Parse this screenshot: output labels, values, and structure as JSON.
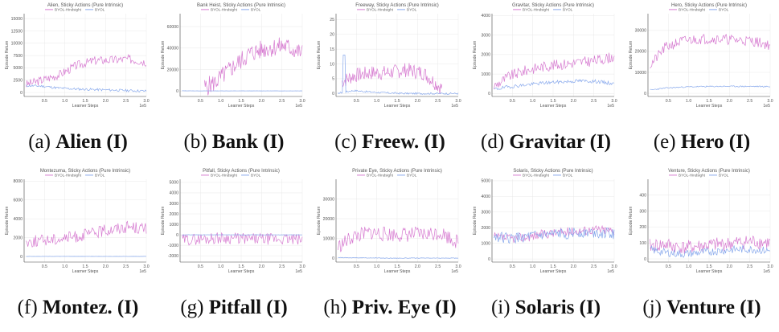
{
  "colors": {
    "hindsight": "#d67ad0",
    "byol": "#87a8ec",
    "grid": "#e9e9e9",
    "axis": "#444444"
  },
  "chart_data": [
    {
      "type": "line",
      "title": "Alien, Sticky Actions (Pure Intrinsic)",
      "xlabel": "Learner Steps",
      "ylabel": "Episode Return",
      "exponent": "1e5",
      "xlim": [
        0,
        3.0
      ],
      "ylim": [
        -800,
        16000
      ],
      "xticks": [
        "0.5",
        "1.0",
        "1.5",
        "2.0",
        "2.5",
        "3.0"
      ],
      "yticks": [
        0,
        2500,
        5000,
        7500,
        10000,
        12500,
        15000
      ],
      "caption_letter": "(a)",
      "caption_name": "Alien (I)",
      "series": [
        {
          "name": "BYOL-Hindsight",
          "base": [
            1500,
            2500,
            3600,
            5500,
            6500,
            6600,
            6800,
            6200
          ],
          "noise": 900,
          "seed": 3
        },
        {
          "name": "BYOL",
          "base": [
            1400,
            1300,
            900,
            700,
            600,
            500,
            400,
            300
          ],
          "noise": 250,
          "seed": 11
        }
      ]
    },
    {
      "type": "line",
      "title": "Bank Heist, Sticky Actions (Pure Intrinsic)",
      "xlabel": "Learner Steps",
      "ylabel": "Episode Return",
      "exponent": "1e5",
      "xlim": [
        0,
        3.0
      ],
      "ylim": [
        -5000,
        72000
      ],
      "xticks": [
        "0.5",
        "1.0",
        "1.5",
        "2.0",
        "2.5",
        "3.0"
      ],
      "yticks": [
        0,
        20000,
        40000,
        60000
      ],
      "caption_letter": "(b)",
      "caption_name": "Bank (I)",
      "series": [
        {
          "name": "BYOL-Hindsight",
          "base": [
            0,
            0,
            8000,
            22000,
            35000,
            40000,
            42000,
            35000
          ],
          "noise": 9000,
          "seed": 5,
          "start": 0.6
        },
        {
          "name": "BYOL",
          "base": [
            300,
            200,
            200,
            200,
            200,
            200,
            200,
            200
          ],
          "noise": 60,
          "seed": 13
        }
      ]
    },
    {
      "type": "line",
      "title": "Freeway, Sticky Actions (Pure Intrinsic)",
      "xlabel": "Learner Steps",
      "ylabel": "Episode Return",
      "exponent": "1e5",
      "xlim": [
        0,
        3.0
      ],
      "ylim": [
        -1,
        27
      ],
      "xticks": [
        "0.5",
        "1.0",
        "1.5",
        "2.0",
        "2.5",
        "3.0"
      ],
      "yticks": [
        0,
        5,
        10,
        15,
        20,
        25
      ],
      "caption_letter": "(c)",
      "caption_name": "Freew. (I)",
      "series": [
        {
          "name": "BYOL-Hindsight",
          "base": [
            3,
            6,
            7,
            7,
            8,
            7,
            2,
            0
          ],
          "noise": 2.5,
          "seed": 7,
          "start": 0.15,
          "end": 2.6
        },
        {
          "name": "BYOL",
          "base": [
            0,
            1,
            0.5,
            0.2,
            0,
            0,
            0,
            0
          ],
          "noise": 0.3,
          "seed": 17,
          "spike": [
            0.2,
            13
          ]
        }
      ]
    },
    {
      "type": "line",
      "title": "Gravitar, Sticky Actions (Pure Intrinsic)",
      "xlabel": "Learner Steps",
      "ylabel": "Episode Return",
      "exponent": "1e5",
      "xlim": [
        0,
        3.0
      ],
      "ylim": [
        -150,
        4100
      ],
      "xticks": [
        "0.5",
        "1.0",
        "1.5",
        "2.0",
        "2.5",
        "3.0"
      ],
      "yticks": [
        0,
        1000,
        2000,
        3000,
        4000
      ],
      "caption_letter": "(d)",
      "caption_name": "Gravitar (I)",
      "series": [
        {
          "name": "BYOL-Hindsight",
          "base": [
            300,
            900,
            1200,
            1400,
            1500,
            1600,
            1700,
            1900
          ],
          "noise": 280,
          "seed": 9
        },
        {
          "name": "BYOL",
          "base": [
            200,
            350,
            450,
            550,
            600,
            650,
            620,
            500
          ],
          "noise": 90,
          "seed": 19
        }
      ]
    },
    {
      "type": "line",
      "title": "Hero, Sticky Actions (Pure Intrinsic)",
      "xlabel": "Learner Steps",
      "ylabel": "Episode Return",
      "exponent": "1e5",
      "xlim": [
        0,
        3.0
      ],
      "ylim": [
        -1500,
        38000
      ],
      "xticks": [
        "0.5",
        "1.0",
        "1.5",
        "2.0",
        "2.5",
        "3.0"
      ],
      "yticks": [
        0,
        10000,
        20000,
        30000
      ],
      "caption_letter": "(e)",
      "caption_name": "Hero (I)",
      "series": [
        {
          "name": "BYOL-Hindsight",
          "base": [
            12000,
            22000,
            25000,
            26000,
            26000,
            25500,
            25000,
            23000
          ],
          "noise": 2500,
          "seed": 21
        },
        {
          "name": "BYOL",
          "base": [
            1500,
            2500,
            3000,
            3200,
            3300,
            3300,
            3300,
            3200
          ],
          "noise": 300,
          "seed": 23
        }
      ]
    },
    {
      "type": "line",
      "title": "Montezuma, Sticky Actions (Pure Intrinsic)",
      "xlabel": "Learner Steps",
      "ylabel": "Episode Return",
      "exponent": "1e5",
      "xlim": [
        0,
        3.0
      ],
      "ylim": [
        -600,
        8200
      ],
      "xticks": [
        "0.5",
        "1.0",
        "1.5",
        "2.0",
        "2.5",
        "3.0"
      ],
      "yticks": [
        0,
        2000,
        4000,
        6000,
        8000
      ],
      "caption_letter": "(f)",
      "caption_name": "Montez. (I)",
      "series": [
        {
          "name": "BYOL-Hindsight",
          "base": [
            1500,
            1700,
            1900,
            2100,
            2500,
            2900,
            3200,
            2900
          ],
          "noise": 650,
          "seed": 25
        },
        {
          "name": "BYOL",
          "base": [
            0,
            0,
            0,
            0,
            0,
            0,
            0,
            0
          ],
          "noise": 10,
          "seed": 27
        }
      ]
    },
    {
      "type": "line",
      "title": "Pitfall, Sticky Actions (Pure Intrinsic)",
      "xlabel": "Learner Steps",
      "ylabel": "Episode Return",
      "exponent": "1e5",
      "xlim": [
        0,
        3.0
      ],
      "ylim": [
        -2600,
        5300
      ],
      "xticks": [
        "0.5",
        "1.0",
        "1.5",
        "2.0",
        "2.5",
        "3.0"
      ],
      "yticks": [
        -2000,
        -1000,
        0,
        1000,
        2000,
        3000,
        4000,
        5000
      ],
      "caption_letter": "(g)",
      "caption_name": "Pitfall (I)",
      "series": [
        {
          "name": "BYOL-Hindsight",
          "base": [
            -500,
            -400,
            -300,
            -300,
            -400,
            -400,
            -400,
            -500
          ],
          "noise": 550,
          "seed": 29
        },
        {
          "name": "BYOL",
          "base": [
            0,
            0,
            0,
            0,
            0,
            0,
            0,
            0
          ],
          "noise": 15,
          "seed": 31
        }
      ]
    },
    {
      "type": "line",
      "title": "Private Eye, Sticky Actions (Pure Intrinsic)",
      "xlabel": "Learner Steps",
      "ylabel": "Episode Return",
      "exponent": "1e5",
      "xlim": [
        0,
        3.0
      ],
      "ylim": [
        -2000,
        40000
      ],
      "xticks": [
        "0.5",
        "1.0",
        "1.5",
        "2.0",
        "2.5",
        "3.0"
      ],
      "yticks": [
        0,
        10000,
        20000,
        30000
      ],
      "caption_letter": "(h)",
      "caption_name": "Priv. Eye (I)",
      "series": [
        {
          "name": "BYOL-Hindsight",
          "base": [
            5000,
            11000,
            13000,
            12000,
            12000,
            12000,
            13000,
            8000
          ],
          "noise": 3800,
          "seed": 33
        },
        {
          "name": "BYOL",
          "base": [
            300,
            200,
            100,
            0,
            0,
            0,
            0,
            0
          ],
          "noise": 150,
          "seed": 35
        }
      ]
    },
    {
      "type": "line",
      "title": "Solaris, Sticky Actions (Pure Intrinsic)",
      "xlabel": "Learner Steps",
      "ylabel": "Episode Return",
      "exponent": "1e5",
      "xlim": [
        0,
        3.0
      ],
      "ylim": [
        -200,
        5100
      ],
      "xticks": [
        "0.5",
        "1.0",
        "1.5",
        "2.0",
        "2.5",
        "3.0"
      ],
      "yticks": [
        0,
        1000,
        2000,
        3000,
        4000,
        5000
      ],
      "caption_letter": "(i)",
      "caption_name": "Solaris (I)",
      "series": [
        {
          "name": "BYOL-Hindsight",
          "base": [
            1400,
            1300,
            1400,
            1600,
            1700,
            1800,
            1900,
            1800
          ],
          "noise": 300,
          "seed": 37
        },
        {
          "name": "BYOL",
          "base": [
            1500,
            1300,
            1400,
            1500,
            1600,
            1700,
            1700,
            1600
          ],
          "noise": 350,
          "seed": 39
        }
      ]
    },
    {
      "type": "line",
      "title": "Venture, Sticky Actions (Pure Intrinsic)",
      "xlabel": "Learner Steps",
      "ylabel": "Episode Return",
      "exponent": "1e5",
      "xlim": [
        0,
        3.0
      ],
      "ylim": [
        -20,
        500
      ],
      "xticks": [
        "0.5",
        "1.0",
        "1.5",
        "2.0",
        "2.5",
        "3.0"
      ],
      "yticks": [
        0,
        100,
        200,
        300,
        400
      ],
      "caption_letter": "(j)",
      "caption_name": "Venture (I)",
      "series": [
        {
          "name": "BYOL-Hindsight",
          "base": [
            80,
            90,
            70,
            80,
            90,
            100,
            110,
            100
          ],
          "noise": 45,
          "seed": 41
        },
        {
          "name": "BYOL",
          "base": [
            60,
            40,
            30,
            40,
            50,
            60,
            60,
            50
          ],
          "noise": 25,
          "seed": 43
        }
      ]
    }
  ]
}
